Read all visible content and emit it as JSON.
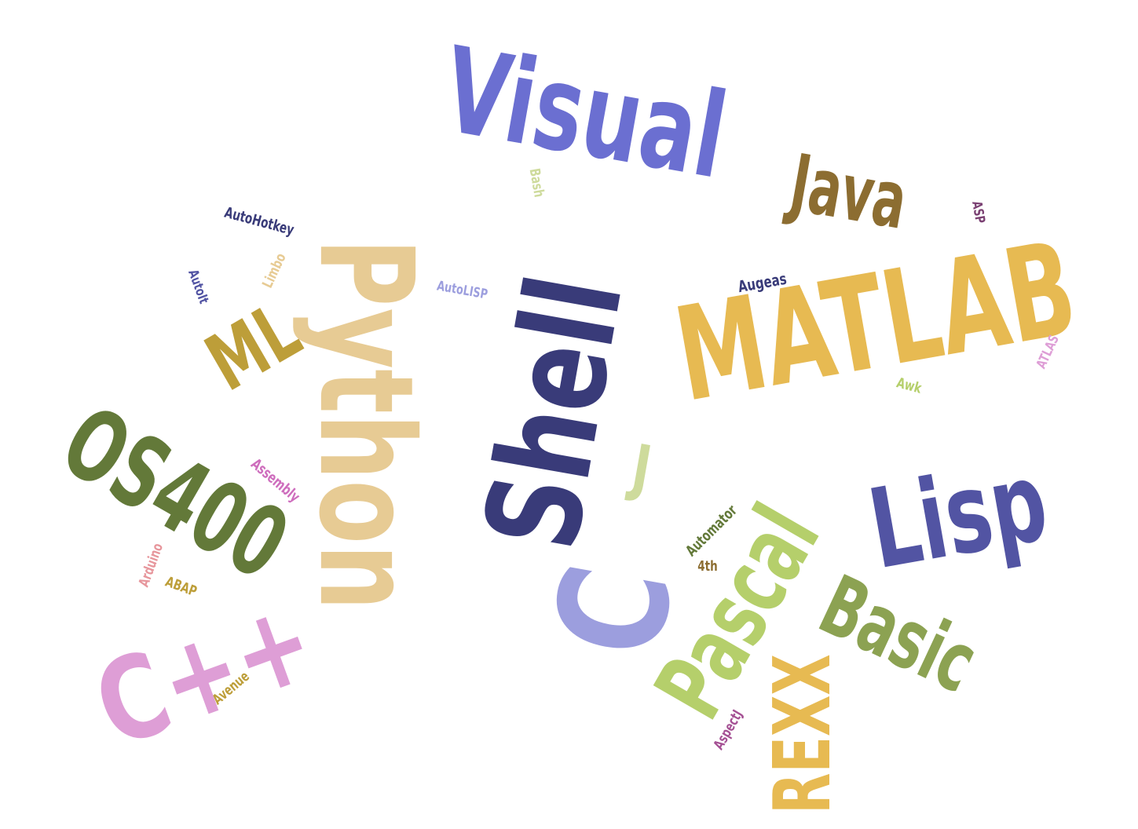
{
  "word_cloud": {
    "words": [
      {
        "text": "Visual",
        "color": "#6b6fd1"
      },
      {
        "text": "Java",
        "color": "#8c6d31"
      },
      {
        "text": "Python",
        "color": "#e7cb94"
      },
      {
        "text": "Shell",
        "color": "#393b79"
      },
      {
        "text": "MATLAB",
        "color": "#e7ba52"
      },
      {
        "text": "ML",
        "color": "#bd9e39"
      },
      {
        "text": "OS400",
        "color": "#637939"
      },
      {
        "text": "Lisp",
        "color": "#5254a3"
      },
      {
        "text": "C",
        "color": "#9c9ede"
      },
      {
        "text": "C++",
        "color": "#de9ed6"
      },
      {
        "text": "Pascal",
        "color": "#b5cf6b"
      },
      {
        "text": "Basic",
        "color": "#8ca252"
      },
      {
        "text": "REXX",
        "color": "#e7ba52"
      },
      {
        "text": "J",
        "color": "#cedb9c"
      },
      {
        "text": "Bash",
        "color": "#cedb9c"
      },
      {
        "text": "AutoHotkey",
        "color": "#393b79"
      },
      {
        "text": "AutoIt",
        "color": "#5254a3"
      },
      {
        "text": "Limbo",
        "color": "#e7cb94"
      },
      {
        "text": "AutoLISP",
        "color": "#9c9ede"
      },
      {
        "text": "Augeas",
        "color": "#393b79"
      },
      {
        "text": "ASP",
        "color": "#7b4173"
      },
      {
        "text": "ATLAS",
        "color": "#de9ed6"
      },
      {
        "text": "Awk",
        "color": "#b5cf6b"
      },
      {
        "text": "Assembly",
        "color": "#ce6dbd"
      },
      {
        "text": "Arduino",
        "color": "#e7969c"
      },
      {
        "text": "ABAP",
        "color": "#bd9e39"
      },
      {
        "text": "Automator",
        "color": "#637939"
      },
      {
        "text": "4th",
        "color": "#8c6d31"
      },
      {
        "text": "AspectJ",
        "color": "#a55194"
      },
      {
        "text": "Avenue",
        "color": "#bd9e39"
      }
    ]
  }
}
